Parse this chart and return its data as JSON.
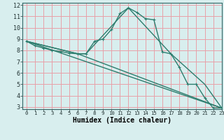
{
  "line1_x": [
    0,
    1,
    2,
    3,
    4,
    5,
    6,
    7,
    8,
    9,
    10,
    11,
    12,
    13,
    14,
    15,
    16,
    17,
    18,
    19,
    20,
    21,
    22,
    23
  ],
  "line1_y": [
    8.8,
    8.4,
    8.2,
    8.0,
    7.9,
    7.75,
    7.7,
    7.7,
    8.8,
    9.0,
    9.85,
    11.25,
    11.75,
    11.35,
    10.8,
    10.7,
    7.85,
    7.7,
    6.5,
    5.0,
    5.0,
    3.8,
    2.9,
    2.9
  ],
  "line2_x": [
    0,
    6,
    7,
    12,
    17,
    21,
    23
  ],
  "line2_y": [
    8.8,
    7.7,
    7.7,
    11.75,
    7.7,
    5.0,
    2.9
  ],
  "line3_x": [
    0,
    6,
    23
  ],
  "line3_y": [
    8.8,
    7.7,
    2.9
  ],
  "line4_x": [
    0,
    23
  ],
  "line4_y": [
    8.8,
    2.9
  ],
  "line_color": "#2d7d6e",
  "bg_color": "#d8eeee",
  "grid_color": "#e8a0a8",
  "xlabel": "Humidex (Indice chaleur)",
  "xlim": [
    -0.5,
    23
  ],
  "ylim": [
    2.8,
    12.2
  ],
  "xticks": [
    0,
    1,
    2,
    3,
    4,
    5,
    6,
    7,
    8,
    9,
    10,
    11,
    12,
    13,
    14,
    15,
    16,
    17,
    18,
    19,
    20,
    21,
    22,
    23
  ],
  "yticks": [
    3,
    4,
    5,
    6,
    7,
    8,
    9,
    10,
    11,
    12
  ],
  "marker": "+"
}
